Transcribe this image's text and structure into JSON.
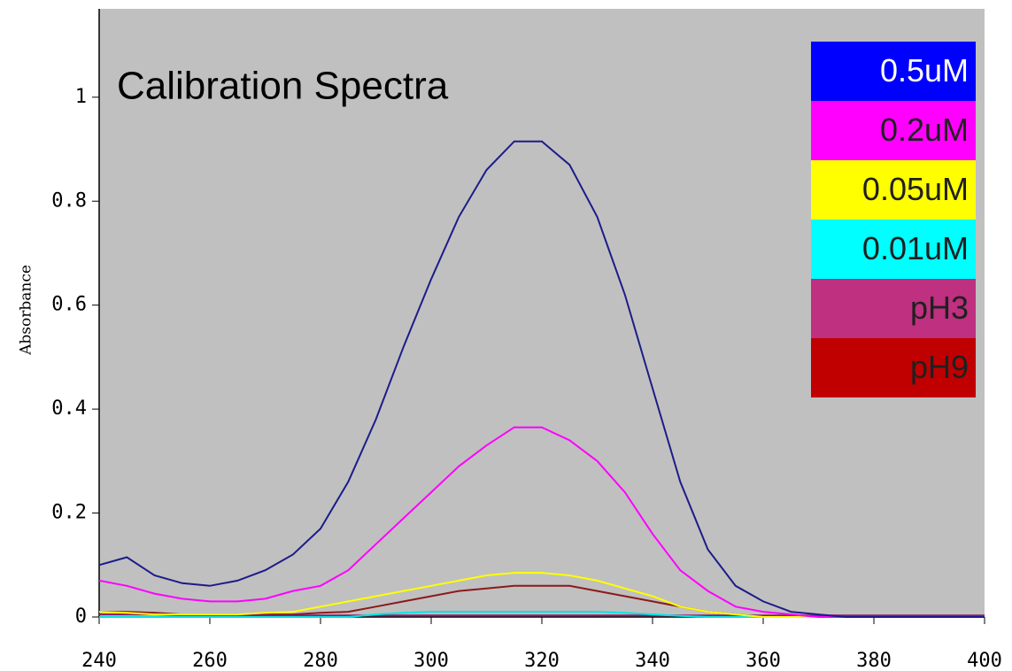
{
  "chart_data": {
    "type": "line",
    "title": "Calibration Spectra",
    "y_label": "Absorbance",
    "x": [
      240,
      245,
      250,
      255,
      260,
      265,
      270,
      275,
      280,
      285,
      290,
      295,
      300,
      305,
      310,
      315,
      320,
      325,
      330,
      335,
      340,
      345,
      350,
      355,
      360,
      365,
      370,
      375,
      380,
      385,
      390,
      395,
      400
    ],
    "series": [
      {
        "name": "0.5uM",
        "color": "#1c1c8a",
        "legend_color": "#0000ff",
        "label_color": "#ffffff",
        "values": [
          0.1,
          0.115,
          0.08,
          0.065,
          0.06,
          0.07,
          0.09,
          0.12,
          0.17,
          0.26,
          0.38,
          0.52,
          0.65,
          0.77,
          0.86,
          0.915,
          0.915,
          0.87,
          0.77,
          0.62,
          0.44,
          0.26,
          0.13,
          0.06,
          0.03,
          0.01,
          0.005,
          0,
          0,
          0,
          0,
          0,
          0
        ]
      },
      {
        "name": "0.2uM",
        "color": "#ff00ff",
        "legend_color": "#ff00ff",
        "label_color": "#202020",
        "values": [
          0.07,
          0.06,
          0.045,
          0.035,
          0.03,
          0.03,
          0.035,
          0.05,
          0.06,
          0.09,
          0.14,
          0.19,
          0.24,
          0.29,
          0.33,
          0.365,
          0.365,
          0.34,
          0.3,
          0.24,
          0.16,
          0.09,
          0.05,
          0.02,
          0.01,
          0.005,
          0,
          0,
          0,
          0,
          0,
          0,
          0
        ]
      },
      {
        "name": "0.05uM",
        "color": "#ffff00",
        "legend_color": "#ffff00",
        "label_color": "#202020",
        "values": [
          0.01,
          0.008,
          0.005,
          0.005,
          0.005,
          0.005,
          0.008,
          0.01,
          0.02,
          0.03,
          0.04,
          0.05,
          0.06,
          0.07,
          0.08,
          0.085,
          0.085,
          0.08,
          0.07,
          0.055,
          0.04,
          0.02,
          0.01,
          0.005,
          0,
          0,
          0,
          0,
          0,
          0,
          0,
          0,
          0
        ]
      },
      {
        "name": "0.01uM",
        "color": "#00e5e5",
        "legend_color": "#00ffff",
        "label_color": "#202020",
        "values": [
          0,
          0,
          0,
          0,
          0,
          0,
          0,
          0,
          0,
          0,
          0.005,
          0.008,
          0.01,
          0.01,
          0.01,
          0.01,
          0.01,
          0.01,
          0.01,
          0.008,
          0.005,
          0.002,
          0,
          0,
          0,
          0,
          0,
          0,
          0,
          0,
          0,
          0,
          0
        ]
      },
      {
        "name": "pH3",
        "color": "#8b1a6b",
        "legend_color": "#bf3080",
        "label_color": "#202020",
        "values": [
          0.005,
          0.005,
          0.005,
          0.003,
          0.003,
          0.003,
          0.003,
          0.003,
          0.003,
          0.003,
          0.003,
          0.003,
          0.003,
          0.003,
          0.003,
          0.003,
          0.003,
          0.003,
          0.003,
          0.003,
          0.003,
          0.003,
          0.003,
          0.003,
          0.003,
          0.003,
          0.003,
          0.003,
          0.003,
          0.003,
          0.003,
          0.003,
          0.003
        ]
      },
      {
        "name": "pH9",
        "color": "#8b1a1a",
        "legend_color": "#c00000",
        "label_color": "#202020",
        "values": [
          0.01,
          0.01,
          0.008,
          0.005,
          0.005,
          0.005,
          0.005,
          0.005,
          0.008,
          0.01,
          0.02,
          0.03,
          0.04,
          0.05,
          0.055,
          0.06,
          0.06,
          0.06,
          0.05,
          0.04,
          0.03,
          0.02,
          0.01,
          0.005,
          0,
          0,
          0,
          0,
          0,
          0,
          0,
          0,
          0
        ]
      }
    ],
    "xlim": [
      240,
      400
    ],
    "ylim": [
      0,
      1.17
    ],
    "xticks": [
      240,
      260,
      280,
      300,
      320,
      340,
      360,
      380,
      400
    ],
    "yticks": [
      0,
      0.2,
      0.4,
      0.6,
      0.8,
      1
    ]
  }
}
